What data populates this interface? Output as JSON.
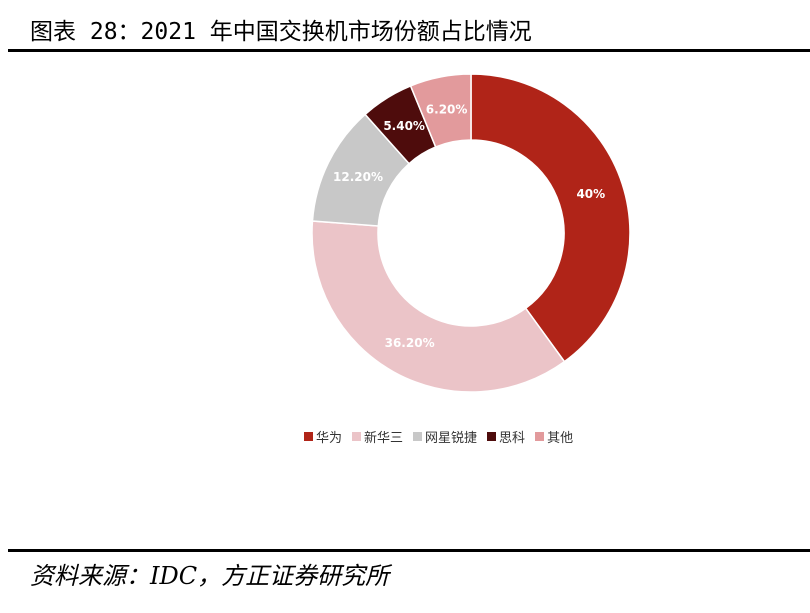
{
  "figure": {
    "title": "图表 28：2021 年中国交换机市场份额占比情况",
    "source": "资料来源：IDC，方正证券研究所"
  },
  "chart_data": {
    "type": "pie",
    "donut": true,
    "categories": [
      "华为",
      "新华三",
      "网星锐捷",
      "思科",
      "其他"
    ],
    "values": [
      40,
      36.2,
      12.2,
      5.4,
      6.2
    ],
    "labels": [
      "40%",
      "36.20%",
      "12.20%",
      "5.40%",
      "6.20%"
    ],
    "colors": [
      "#b02418",
      "#ebc4c8",
      "#c8c8c8",
      "#4e0c0c",
      "#e29a9c"
    ],
    "label_colors": [
      "#ffffff",
      "#ffffff",
      "#ffffff",
      "#ffffff",
      "#ffffff"
    ],
    "legend_position": "bottom"
  }
}
